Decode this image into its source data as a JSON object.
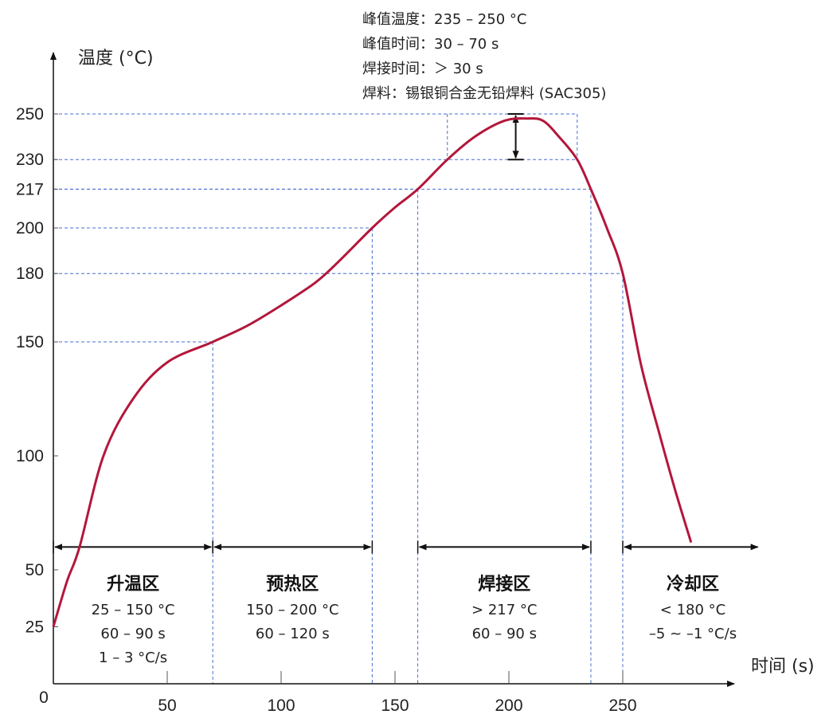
{
  "chart_data": {
    "type": "line",
    "xlabel": "时间 (s)",
    "ylabel": "温度 (°C)",
    "xlim": [
      0,
      300
    ],
    "ylim": [
      0,
      260
    ],
    "x_ticks": [
      "0",
      "50",
      "100",
      "150",
      "200",
      "250"
    ],
    "y_ticks": [
      "25",
      "50",
      "100",
      "150",
      "180",
      "200",
      "217",
      "230",
      "250"
    ],
    "y_tick_values": [
      25,
      50,
      100,
      150,
      180,
      200,
      217,
      230,
      250
    ],
    "x_tick_values": [
      0,
      50,
      100,
      150,
      200,
      250
    ],
    "grid": false,
    "curve_color": "#b3173b",
    "guide_color": "#4a6fd0",
    "series": [
      {
        "x": [
          0,
          6,
          11.5,
          22,
          35,
          50,
          70,
          85,
          100,
          115,
          125,
          140,
          150,
          160,
          173,
          185,
          198,
          208,
          215,
          222,
          230,
          236,
          243,
          250,
          258,
          266,
          273,
          280
        ],
        "y": [
          25,
          45,
          60,
          100,
          125,
          141,
          150,
          157,
          166,
          176,
          185,
          200,
          209,
          217,
          230,
          240,
          247,
          248,
          247,
          240,
          230,
          217,
          200,
          180,
          140,
          110,
          85,
          62
        ]
      }
    ],
    "guides": [
      {
        "temp": 150,
        "time": 70
      },
      {
        "temp": 200,
        "time": 140
      },
      {
        "temp": 217,
        "time": 160
      },
      {
        "temp": 217,
        "time": 236
      },
      {
        "temp": 180,
        "time": 250
      },
      {
        "temp": 230,
        "time": 173
      },
      {
        "temp": 230,
        "time": 230
      }
    ],
    "peak_box": {
      "t_start": 173,
      "t_end": 230,
      "temp_low": 230,
      "temp_high": 250
    },
    "peak_arrow": {
      "time": 203,
      "from": 230,
      "to": 250
    },
    "zones": [
      {
        "title": "升温区",
        "lines": [
          "25 – 150 °C",
          "60 – 90 s",
          "1 – 3 °C/s"
        ],
        "start": 0,
        "end": 70
      },
      {
        "title": "预热区",
        "lines": [
          "150 – 200 °C",
          "60 – 120 s"
        ],
        "start": 70,
        "end": 140
      },
      {
        "title": "焊接区",
        "lines": [
          "> 217 °C",
          "60 – 90 s"
        ],
        "start": 160,
        "end": 236
      },
      {
        "title": "冷却区",
        "lines": [
          "< 180 °C",
          "–5 ~ –1 °C/s"
        ],
        "start": 250,
        "end": 310
      }
    ],
    "zone_arrow_temp": 60,
    "annotations": [
      "峰值温度：235 – 250 °C",
      "峰值时间：30 – 70 s",
      "焊接时间：＞ 30 s",
      "焊料：锡银铜合金无铅焊料 (SAC305)"
    ]
  }
}
